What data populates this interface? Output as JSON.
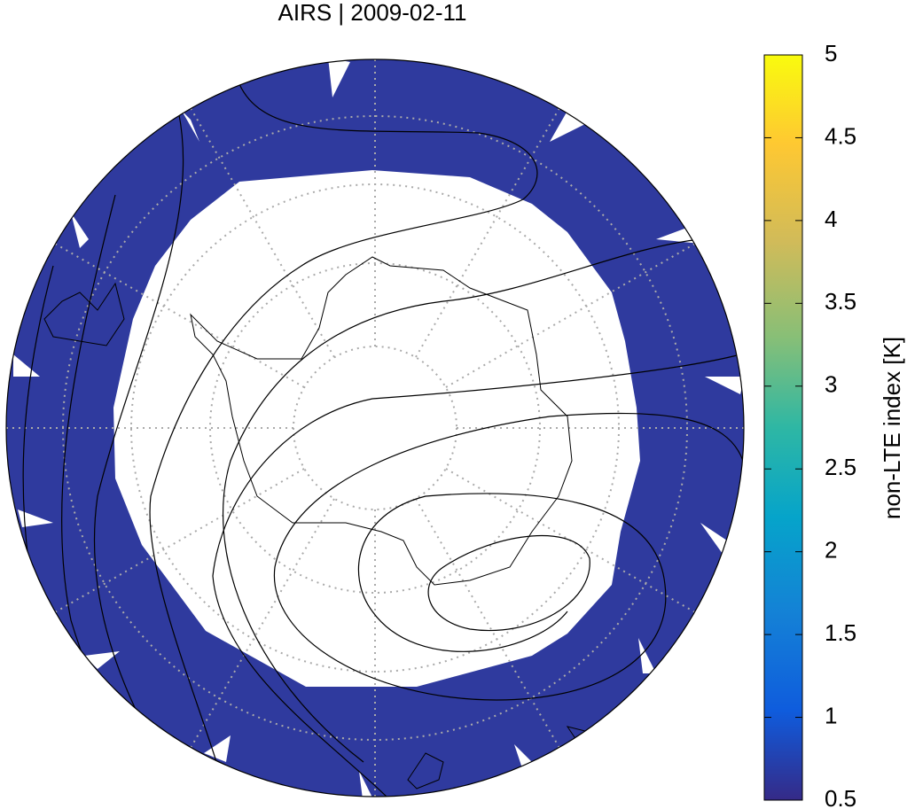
{
  "chart_data": {
    "type": "map",
    "title": "AIRS | 2009-02-11",
    "colorbar": {
      "label": "non-LTE index [K]",
      "lim": [
        0.5,
        5
      ],
      "ticks": [
        0.5,
        1,
        1.5,
        2,
        2.5,
        3,
        3.5,
        4,
        4.5,
        5
      ]
    }
  }
}
